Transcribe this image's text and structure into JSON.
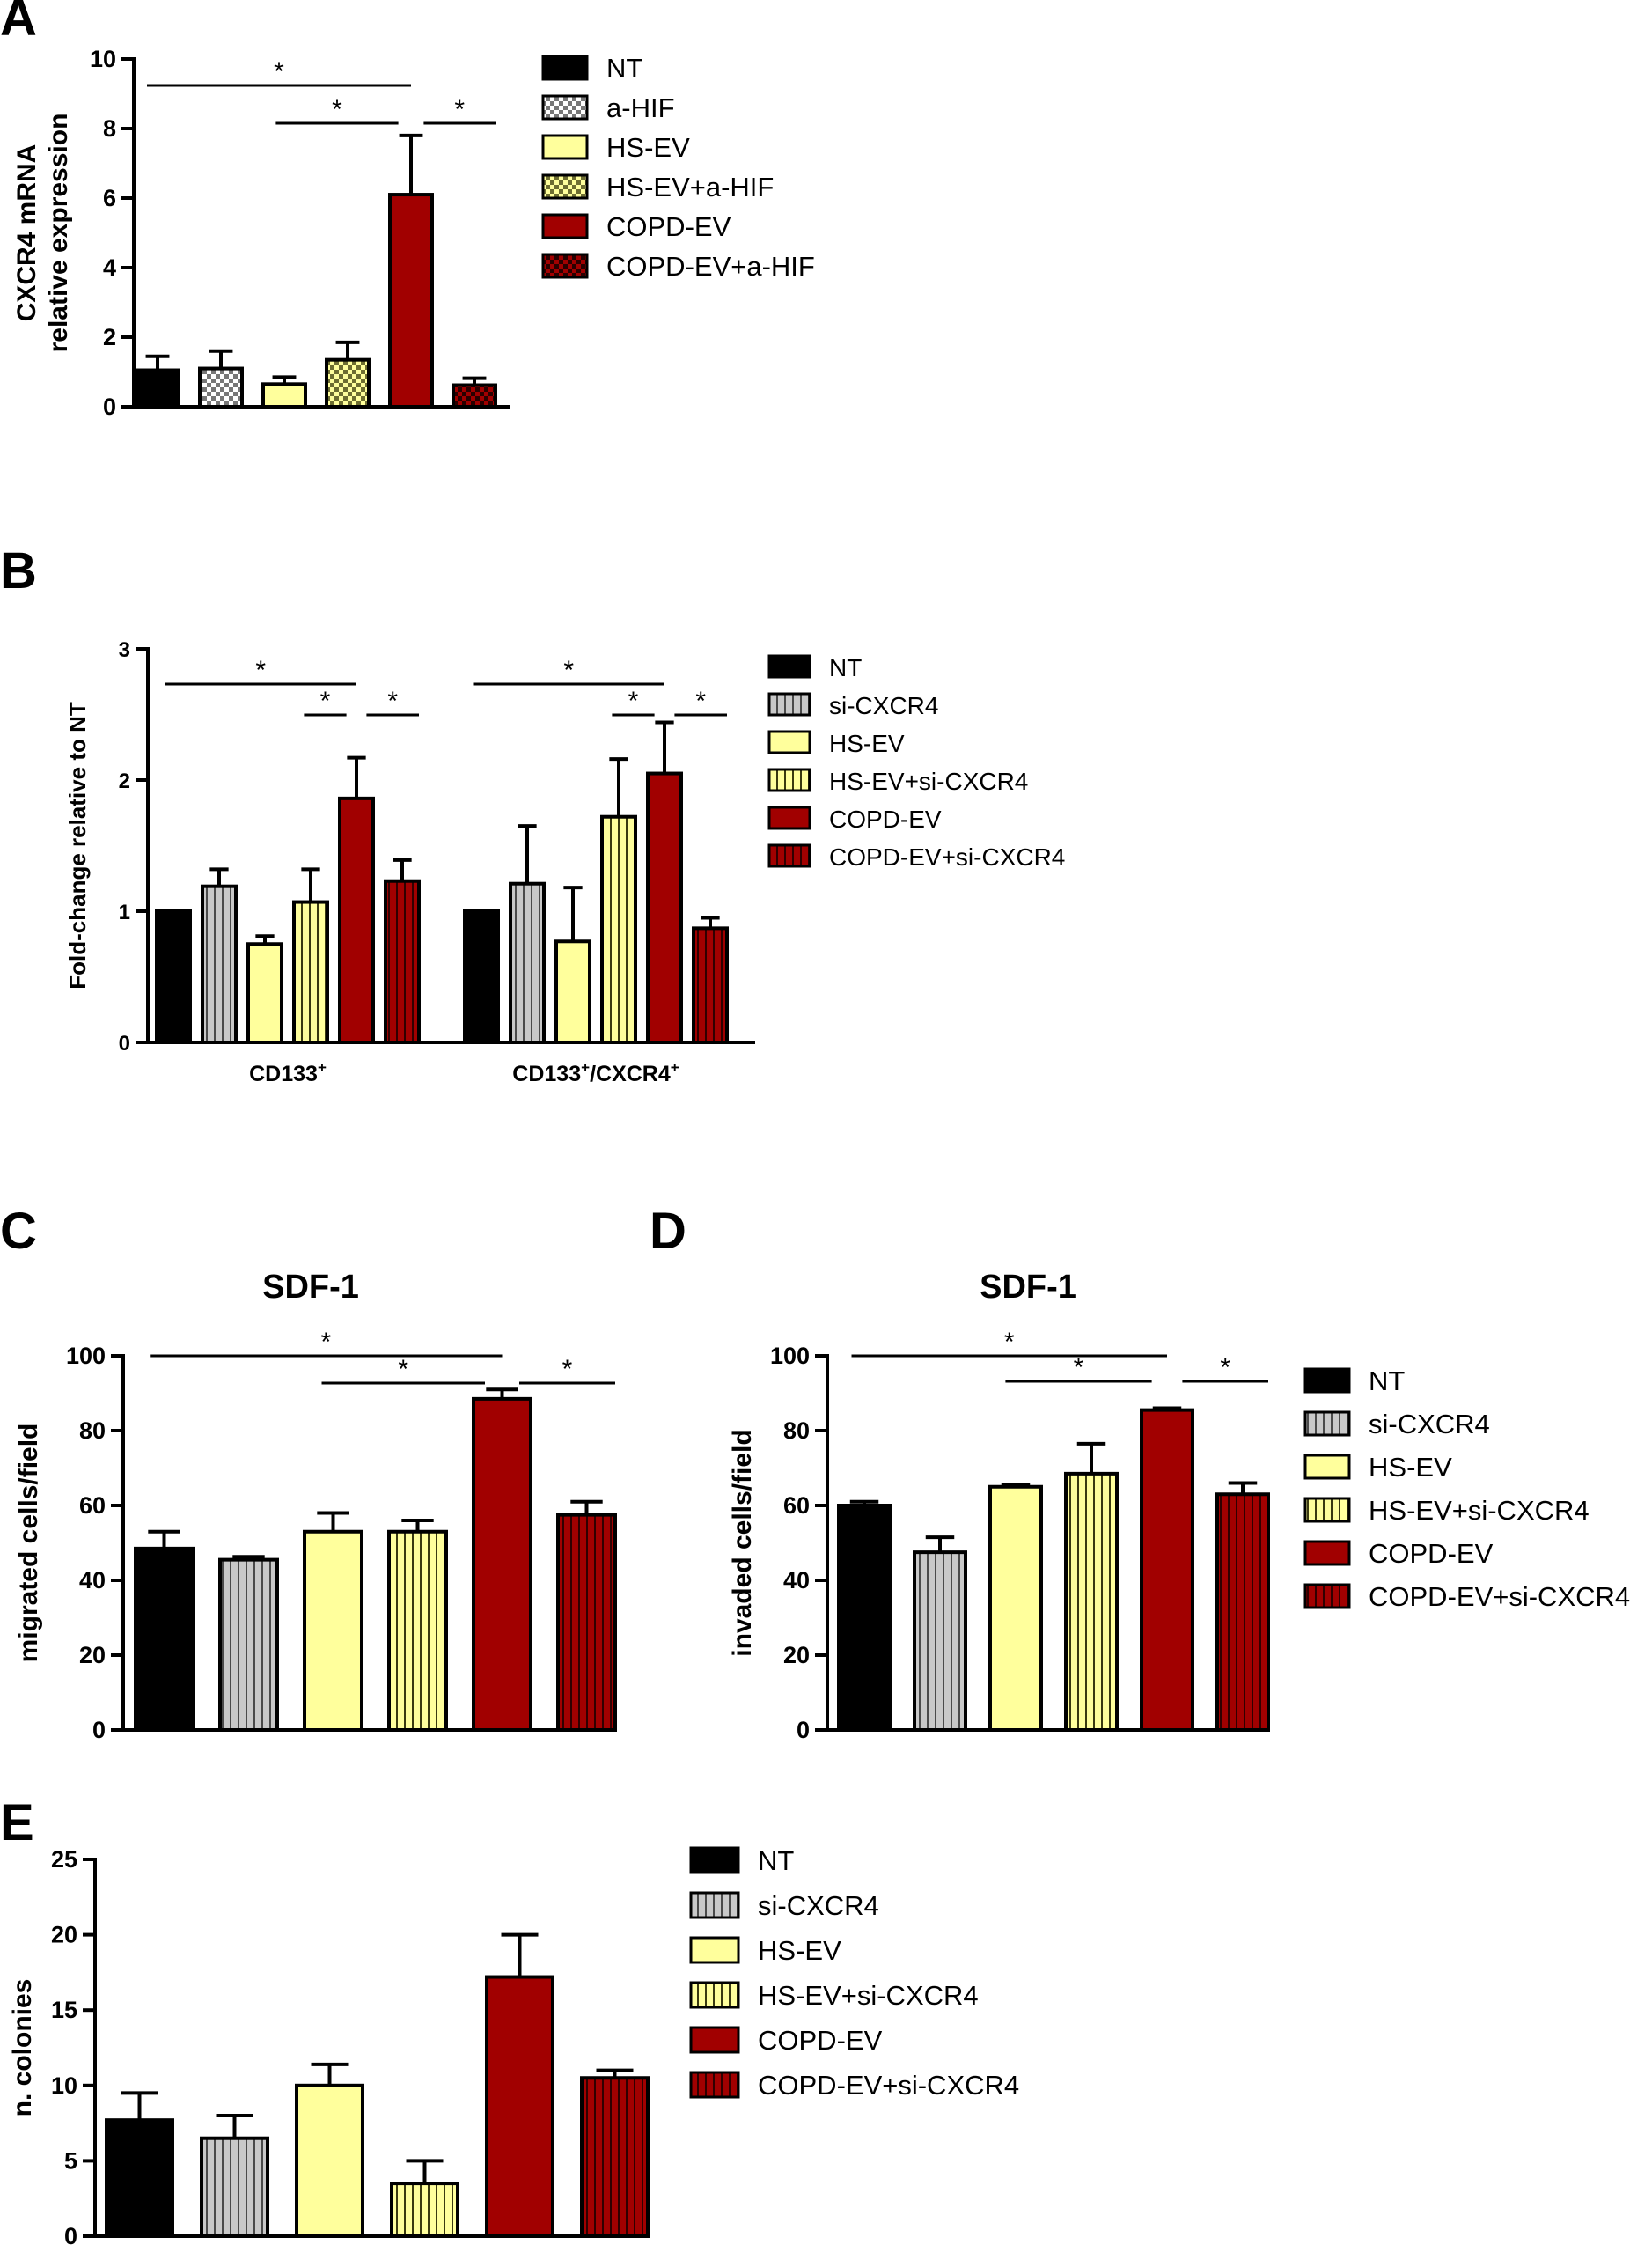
{
  "colors": {
    "NT": "#000000",
    "grey": "#c8c8c8",
    "yellow": "#ffff9c",
    "red": "#a10000",
    "darkred": "#800000"
  },
  "chart_data": [
    {
      "panel": "A",
      "type": "bar",
      "title": "",
      "ylabel": [
        "CXCR4 mRNA",
        "relative expression"
      ],
      "ylim": [
        0,
        10
      ],
      "yticks": [
        0,
        2,
        4,
        6,
        8,
        10
      ],
      "categories": [
        "NT",
        "a-HIF",
        "HS-EV",
        "HS-EV+a-HIF",
        "COPD-EV",
        "COPD-EV+a-HIF"
      ],
      "series": [
        {
          "values": [
            1.05,
            1.1,
            0.65,
            1.35,
            6.1,
            0.62
          ],
          "errors": [
            0.4,
            0.5,
            0.2,
            0.5,
            1.7,
            0.2
          ]
        }
      ],
      "styles": [
        "solid-black",
        "check-grey",
        "solid-yellow",
        "check-yellow",
        "solid-red",
        "check-red"
      ],
      "significance": [
        {
          "from": 0,
          "to": 4,
          "label": "*"
        },
        {
          "from": 2,
          "to": 4,
          "label": "*"
        },
        {
          "from": 4,
          "to": 5,
          "label": "*"
        }
      ],
      "legend": [
        "NT",
        "a-HIF",
        "HS-EV",
        "HS-EV+a-HIF",
        "COPD-EV",
        "COPD-EV+a-HIF"
      ],
      "legend_placement": "right"
    },
    {
      "panel": "B",
      "type": "bar",
      "title": "",
      "ylabel": [
        "Fold-change relative to NT"
      ],
      "ylim": [
        0,
        3
      ],
      "yticks": [
        0,
        1,
        2,
        3
      ],
      "groups": [
        "CD133",
        "CD133/CXCR4"
      ],
      "group_labels": [
        {
          "main": "CD133",
          "sup": "+",
          "rest": "",
          "sup2": ""
        },
        {
          "main": "CD133",
          "sup": "+",
          "rest": "/CXCR4",
          "sup2": "+"
        }
      ],
      "categories": [
        "NT",
        "si-CXCR4",
        "HS-EV",
        "HS-EV+si-CXCR4",
        "COPD-EV",
        "COPD-EV+si-CXCR4"
      ],
      "series": [
        {
          "values": [
            1.0,
            1.19,
            0.75,
            1.07,
            1.86,
            1.23
          ],
          "errors": [
            0.0,
            0.13,
            0.06,
            0.25,
            0.31,
            0.16
          ]
        },
        {
          "values": [
            1.0,
            1.21,
            0.77,
            1.72,
            2.05,
            0.87
          ],
          "errors": [
            0.0,
            0.44,
            0.41,
            0.44,
            0.39,
            0.08
          ]
        }
      ],
      "styles": [
        "solid-black",
        "stripe-grey",
        "solid-yellow",
        "stripe-yellow",
        "solid-red",
        "stripe-red"
      ],
      "significance": [
        [
          {
            "from": 0,
            "to": 4,
            "label": "*"
          },
          {
            "from": 3,
            "to": 4,
            "label": "*"
          },
          {
            "from": 4,
            "to": 5,
            "label": "*"
          }
        ],
        [
          {
            "from": 0,
            "to": 4,
            "label": "*"
          },
          {
            "from": 3,
            "to": 4,
            "label": "*"
          },
          {
            "from": 4,
            "to": 5,
            "label": "*"
          }
        ]
      ],
      "legend": [
        "NT",
        "si-CXCR4",
        "HS-EV",
        "HS-EV+si-CXCR4",
        "COPD-EV",
        "COPD-EV+si-CXCR4"
      ],
      "legend_placement": "right"
    },
    {
      "panel": "C",
      "type": "bar",
      "title": "SDF-1",
      "ylabel": [
        "migrated cells/field"
      ],
      "ylim": [
        0,
        100
      ],
      "yticks": [
        0,
        20,
        40,
        60,
        80,
        100
      ],
      "categories": [
        "NT",
        "si-CXCR4",
        "HS-EV",
        "HS-EV+si-CXCR4",
        "COPD-EV",
        "COPD-EV+si-CXCR4"
      ],
      "series": [
        {
          "values": [
            48.5,
            45.5,
            53,
            53,
            88.5,
            57.5
          ],
          "errors": [
            4.5,
            0.8,
            5,
            3,
            2.5,
            3.5
          ]
        }
      ],
      "styles": [
        "solid-black",
        "stripe-grey",
        "solid-yellow",
        "stripe-yellow",
        "solid-red",
        "stripe-red"
      ],
      "significance": [
        {
          "from": 0,
          "to": 4,
          "label": "*"
        },
        {
          "from": 2,
          "to": 4,
          "label": "*"
        },
        {
          "from": 4,
          "to": 5,
          "label": "*"
        }
      ]
    },
    {
      "panel": "D",
      "type": "bar",
      "title": "SDF-1",
      "ylabel": [
        "invaded cells/field"
      ],
      "ylim": [
        0,
        100
      ],
      "yticks": [
        0,
        20,
        40,
        60,
        80,
        100
      ],
      "categories": [
        "NT",
        "si-CXCR4",
        "HS-EV",
        "HS-EV+si-CXCR4",
        "COPD-EV",
        "COPD-EV+si-CXCR4"
      ],
      "series": [
        {
          "values": [
            60,
            47.5,
            65,
            68.5,
            85.5,
            63
          ],
          "errors": [
            1,
            4,
            0.5,
            8,
            0.5,
            3
          ]
        }
      ],
      "styles": [
        "solid-black",
        "stripe-grey",
        "solid-yellow",
        "stripe-yellow",
        "solid-red",
        "stripe-red"
      ],
      "significance": [
        {
          "from": 0,
          "to": 4,
          "label": "*"
        },
        {
          "from": 2,
          "to": 4,
          "label": "*"
        },
        {
          "from": 4,
          "to": 5,
          "label": "*"
        }
      ],
      "legend": [
        "NT",
        "si-CXCR4",
        "HS-EV",
        "HS-EV+si-CXCR4",
        "COPD-EV",
        "COPD-EV+si-CXCR4"
      ],
      "legend_placement": "right"
    },
    {
      "panel": "E",
      "type": "bar",
      "title": "",
      "ylabel": [
        "n. colonies"
      ],
      "ylim": [
        0,
        25
      ],
      "yticks": [
        0,
        5,
        10,
        15,
        20,
        25
      ],
      "categories": [
        "NT",
        "si-CXCR4",
        "HS-EV",
        "HS-EV+si-CXCR4",
        "COPD-EV",
        "COPD-EV+si-CXCR4"
      ],
      "series": [
        {
          "values": [
            7.7,
            6.5,
            10,
            3.5,
            17.2,
            10.5
          ],
          "errors": [
            1.8,
            1.5,
            1.4,
            1.5,
            2.8,
            0.5
          ]
        }
      ],
      "styles": [
        "solid-black",
        "stripe-grey",
        "solid-yellow",
        "stripe-yellow",
        "solid-red",
        "stripe-red"
      ],
      "significance": [],
      "legend": [
        "NT",
        "si-CXCR4",
        "HS-EV",
        "HS-EV+si-CXCR4",
        "COPD-EV",
        "COPD-EV+si-CXCR4"
      ],
      "legend_placement": "right"
    }
  ]
}
